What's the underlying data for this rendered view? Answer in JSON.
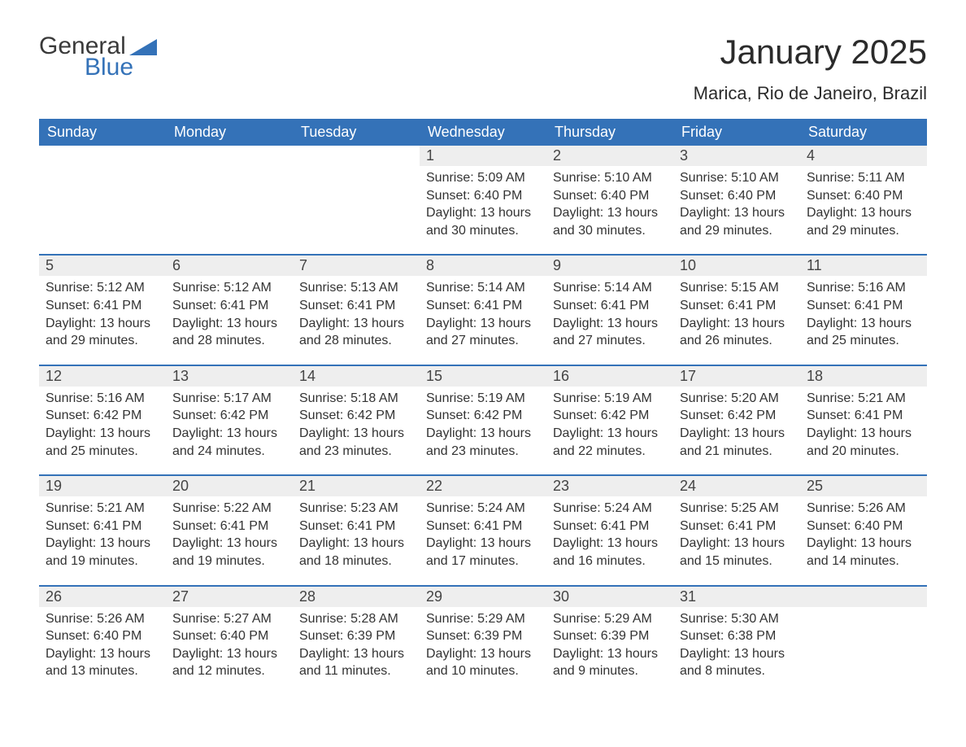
{
  "logo": {
    "text_a": "General",
    "text_b": "Blue",
    "flag_color": "#3472b8"
  },
  "header": {
    "title": "January 2025",
    "location": "Marica, Rio de Janeiro, Brazil"
  },
  "colors": {
    "header_bg": "#3472b8",
    "header_text": "#ffffff",
    "daynum_bg": "#eeeeee",
    "row_border": "#3472b8",
    "page_bg": "#ffffff",
    "text": "#333333"
  },
  "weekdays": [
    "Sunday",
    "Monday",
    "Tuesday",
    "Wednesday",
    "Thursday",
    "Friday",
    "Saturday"
  ],
  "weeks": [
    [
      null,
      null,
      null,
      {
        "n": "1",
        "sunrise": "5:09 AM",
        "sunset": "6:40 PM",
        "daylight": "13 hours and 30 minutes."
      },
      {
        "n": "2",
        "sunrise": "5:10 AM",
        "sunset": "6:40 PM",
        "daylight": "13 hours and 30 minutes."
      },
      {
        "n": "3",
        "sunrise": "5:10 AM",
        "sunset": "6:40 PM",
        "daylight": "13 hours and 29 minutes."
      },
      {
        "n": "4",
        "sunrise": "5:11 AM",
        "sunset": "6:40 PM",
        "daylight": "13 hours and 29 minutes."
      }
    ],
    [
      {
        "n": "5",
        "sunrise": "5:12 AM",
        "sunset": "6:41 PM",
        "daylight": "13 hours and 29 minutes."
      },
      {
        "n": "6",
        "sunrise": "5:12 AM",
        "sunset": "6:41 PM",
        "daylight": "13 hours and 28 minutes."
      },
      {
        "n": "7",
        "sunrise": "5:13 AM",
        "sunset": "6:41 PM",
        "daylight": "13 hours and 28 minutes."
      },
      {
        "n": "8",
        "sunrise": "5:14 AM",
        "sunset": "6:41 PM",
        "daylight": "13 hours and 27 minutes."
      },
      {
        "n": "9",
        "sunrise": "5:14 AM",
        "sunset": "6:41 PM",
        "daylight": "13 hours and 27 minutes."
      },
      {
        "n": "10",
        "sunrise": "5:15 AM",
        "sunset": "6:41 PM",
        "daylight": "13 hours and 26 minutes."
      },
      {
        "n": "11",
        "sunrise": "5:16 AM",
        "sunset": "6:41 PM",
        "daylight": "13 hours and 25 minutes."
      }
    ],
    [
      {
        "n": "12",
        "sunrise": "5:16 AM",
        "sunset": "6:42 PM",
        "daylight": "13 hours and 25 minutes."
      },
      {
        "n": "13",
        "sunrise": "5:17 AM",
        "sunset": "6:42 PM",
        "daylight": "13 hours and 24 minutes."
      },
      {
        "n": "14",
        "sunrise": "5:18 AM",
        "sunset": "6:42 PM",
        "daylight": "13 hours and 23 minutes."
      },
      {
        "n": "15",
        "sunrise": "5:19 AM",
        "sunset": "6:42 PM",
        "daylight": "13 hours and 23 minutes."
      },
      {
        "n": "16",
        "sunrise": "5:19 AM",
        "sunset": "6:42 PM",
        "daylight": "13 hours and 22 minutes."
      },
      {
        "n": "17",
        "sunrise": "5:20 AM",
        "sunset": "6:42 PM",
        "daylight": "13 hours and 21 minutes."
      },
      {
        "n": "18",
        "sunrise": "5:21 AM",
        "sunset": "6:41 PM",
        "daylight": "13 hours and 20 minutes."
      }
    ],
    [
      {
        "n": "19",
        "sunrise": "5:21 AM",
        "sunset": "6:41 PM",
        "daylight": "13 hours and 19 minutes."
      },
      {
        "n": "20",
        "sunrise": "5:22 AM",
        "sunset": "6:41 PM",
        "daylight": "13 hours and 19 minutes."
      },
      {
        "n": "21",
        "sunrise": "5:23 AM",
        "sunset": "6:41 PM",
        "daylight": "13 hours and 18 minutes."
      },
      {
        "n": "22",
        "sunrise": "5:24 AM",
        "sunset": "6:41 PM",
        "daylight": "13 hours and 17 minutes."
      },
      {
        "n": "23",
        "sunrise": "5:24 AM",
        "sunset": "6:41 PM",
        "daylight": "13 hours and 16 minutes."
      },
      {
        "n": "24",
        "sunrise": "5:25 AM",
        "sunset": "6:41 PM",
        "daylight": "13 hours and 15 minutes."
      },
      {
        "n": "25",
        "sunrise": "5:26 AM",
        "sunset": "6:40 PM",
        "daylight": "13 hours and 14 minutes."
      }
    ],
    [
      {
        "n": "26",
        "sunrise": "5:26 AM",
        "sunset": "6:40 PM",
        "daylight": "13 hours and 13 minutes."
      },
      {
        "n": "27",
        "sunrise": "5:27 AM",
        "sunset": "6:40 PM",
        "daylight": "13 hours and 12 minutes."
      },
      {
        "n": "28",
        "sunrise": "5:28 AM",
        "sunset": "6:39 PM",
        "daylight": "13 hours and 11 minutes."
      },
      {
        "n": "29",
        "sunrise": "5:29 AM",
        "sunset": "6:39 PM",
        "daylight": "13 hours and 10 minutes."
      },
      {
        "n": "30",
        "sunrise": "5:29 AM",
        "sunset": "6:39 PM",
        "daylight": "13 hours and 9 minutes."
      },
      {
        "n": "31",
        "sunrise": "5:30 AM",
        "sunset": "6:38 PM",
        "daylight": "13 hours and 8 minutes."
      },
      null
    ]
  ],
  "labels": {
    "sunrise": "Sunrise:",
    "sunset": "Sunset:",
    "daylight": "Daylight:"
  }
}
